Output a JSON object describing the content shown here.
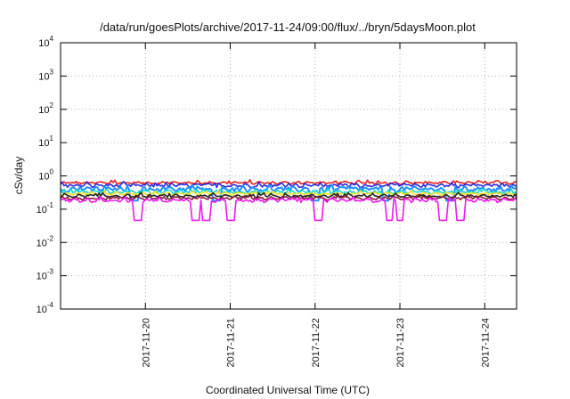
{
  "chart_data": {
    "type": "line",
    "title": "/data/run/goesPlots/archive/2017-11-24/09:00/flux/../bryn/5daysMoon.plot",
    "xlabel": "Coordinated Universal Time (UTC)",
    "ylabel": "cSv/day",
    "yscale": "log",
    "ylim": [
      0.0001,
      10000
    ],
    "xlim": [
      "2017-11-19T00:00",
      "2017-11-24T09:00"
    ],
    "grid": true,
    "legend": "none",
    "x_ticks": [
      "2017-11-20",
      "2017-11-21",
      "2017-11-22",
      "2017-11-23",
      "2017-11-24"
    ],
    "y_ticks": [
      {
        "base": "10",
        "exp": "4"
      },
      {
        "base": "10",
        "exp": "3"
      },
      {
        "base": "10",
        "exp": "2"
      },
      {
        "base": "10",
        "exp": "1"
      },
      {
        "base": "10",
        "exp": "0"
      },
      {
        "base": "10",
        "exp": "-1"
      },
      {
        "base": "10",
        "exp": "-2"
      },
      {
        "base": "10",
        "exp": "-3"
      },
      {
        "base": "10",
        "exp": "-4"
      }
    ],
    "series_time_range": [
      "2017-11-19T00:00",
      "2017-11-24T09:00"
    ],
    "series": [
      {
        "color": "#e8201c",
        "base": 0.62,
        "jitter": 0.07,
        "dips": []
      },
      {
        "color": "#2a2adf",
        "base": 0.52,
        "jitter": 0.09,
        "dips": []
      },
      {
        "color": "#1e90ff",
        "base": 0.4,
        "jitter": 0.1,
        "dips": [
          "2017-11-19T21:00",
          "2017-11-20T20:00",
          "2017-11-22T00:00",
          "2017-11-22T20:00",
          "2017-11-23T14:00"
        ]
      },
      {
        "color": "#16d8c8",
        "base": 0.33,
        "jitter": 0.05,
        "dips": []
      },
      {
        "color": "#f0e020",
        "base": 0.29,
        "jitter": 0.03,
        "dips": []
      },
      {
        "color": "#232323",
        "base": 0.25,
        "jitter": 0.03,
        "dips": []
      },
      {
        "color": "#8b1a3a",
        "base": 0.215,
        "jitter": 0.03,
        "dips": []
      },
      {
        "color": "#f018f0",
        "base": 0.185,
        "jitter": 0.03,
        "dips": [
          "2017-11-19T22:00",
          "2017-11-20T14:00",
          "2017-11-20T17:00",
          "2017-11-21T00:00",
          "2017-11-22T01:00",
          "2017-11-22T21:00",
          "2017-11-23T00:00",
          "2017-11-23T12:00",
          "2017-11-23T17:00"
        ]
      }
    ]
  }
}
